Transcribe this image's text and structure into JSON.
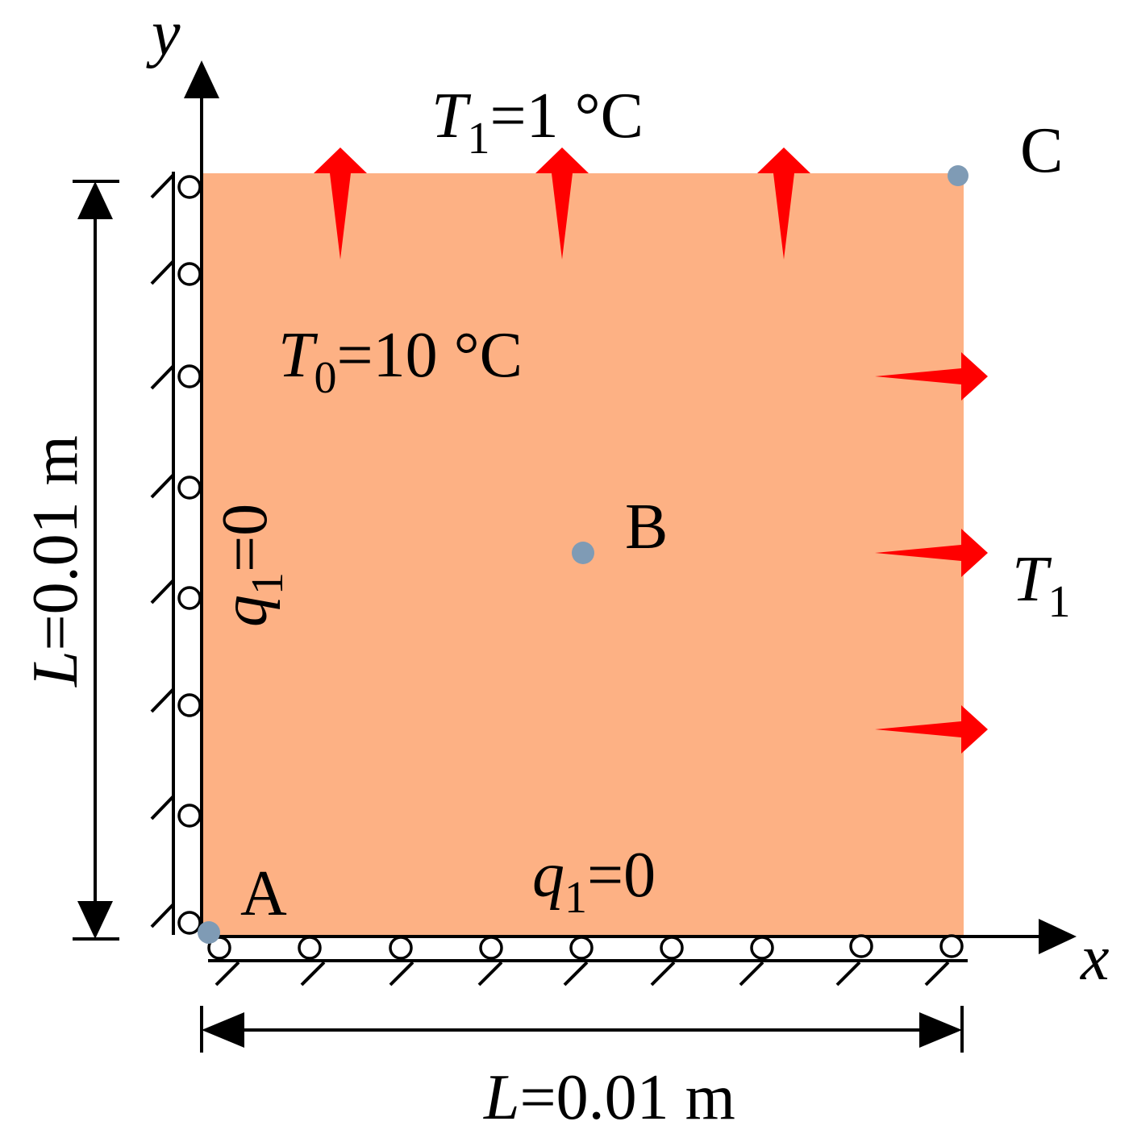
{
  "axes": {
    "x": "x",
    "y": "y"
  },
  "points": {
    "A": "A",
    "B": "B",
    "C": "C"
  },
  "top_boundary": {
    "symbol": "T",
    "subscript": "1",
    "text": "=1 °C"
  },
  "initial_temperature": {
    "symbol": "T",
    "subscript": "0",
    "text": "=10 °C"
  },
  "right_boundary": {
    "symbol": "T",
    "subscript": "1"
  },
  "left_boundary": {
    "symbol": "q",
    "subscript": "1",
    "text": "=0"
  },
  "bottom_boundary": {
    "symbol": "q",
    "subscript": "1",
    "text": "=0"
  },
  "height_dimension": {
    "symbol": "L",
    "text": "=0.01 m"
  },
  "width_dimension": {
    "symbol": "L",
    "text": "=0.01 m"
  }
}
